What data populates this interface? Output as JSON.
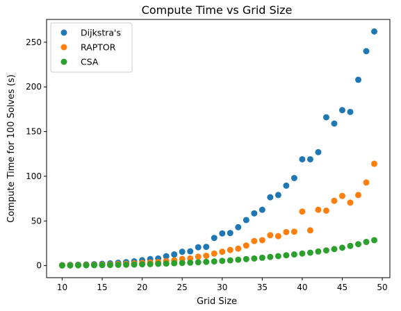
{
  "chart_data": {
    "type": "scatter",
    "title": "Compute Time vs Grid Size",
    "xlabel": "Grid Size",
    "ylabel": "Compute Time for 100 Solves (s)",
    "xlim": [
      8.05,
      50.95
    ],
    "ylim": [
      -13.5,
      275.5
    ],
    "xticks": [
      10,
      15,
      20,
      25,
      30,
      35,
      40,
      45,
      50
    ],
    "yticks": [
      0,
      50,
      100,
      150,
      200,
      250
    ],
    "grid": false,
    "legend_position": "top-left",
    "x": [
      10,
      11,
      12,
      13,
      14,
      15,
      16,
      17,
      18,
      19,
      20,
      21,
      22,
      23,
      24,
      25,
      26,
      27,
      28,
      29,
      30,
      31,
      32,
      33,
      34,
      35,
      36,
      37,
      38,
      39,
      40,
      41,
      42,
      43,
      44,
      45,
      46,
      47,
      48,
      49
    ],
    "series": [
      {
        "name": "Dijkstra's",
        "color": "#1f77b4",
        "values": [
          0.6,
          0.8,
          1.0,
          1.3,
          1.6,
          2.0,
          2.5,
          3.2,
          3.9,
          4.8,
          6.0,
          7.3,
          8.0,
          10.5,
          12.5,
          15.5,
          16.0,
          20.5,
          21.0,
          31.0,
          36.0,
          36.5,
          43.0,
          51.0,
          58.5,
          62.5,
          76.5,
          79.0,
          89.5,
          98.0,
          119.0,
          119.0,
          127.0,
          166.0,
          159.0,
          174.0,
          172.0,
          208.0,
          240.0,
          262.0
        ]
      },
      {
        "name": "RAPTOR",
        "color": "#ff7f0e",
        "values": [
          0.4,
          0.5,
          0.6,
          0.8,
          0.9,
          1.1,
          1.3,
          1.7,
          2.0,
          2.5,
          3.1,
          3.5,
          4.0,
          5.0,
          6.0,
          7.5,
          8.0,
          10.0,
          11.0,
          13.5,
          15.5,
          17.5,
          19.0,
          22.5,
          27.5,
          28.5,
          34.0,
          33.0,
          37.5,
          38.0,
          60.5,
          39.5,
          62.5,
          61.5,
          72.5,
          78.0,
          70.5,
          79.0,
          93.0,
          114.0
        ]
      },
      {
        "name": "CSA",
        "color": "#2ca02c",
        "values": [
          0.1,
          0.2,
          0.3,
          0.4,
          0.5,
          0.6,
          0.7,
          0.9,
          1.0,
          1.2,
          1.5,
          1.7,
          2.0,
          2.3,
          2.7,
          3.0,
          3.3,
          3.7,
          4.2,
          4.7,
          5.3,
          5.9,
          6.6,
          7.3,
          8.0,
          8.8,
          9.7,
          10.6,
          11.6,
          12.5,
          13.5,
          14.5,
          15.8,
          17.0,
          18.5,
          20.0,
          22.0,
          24.0,
          26.5,
          28.5
        ]
      }
    ]
  }
}
